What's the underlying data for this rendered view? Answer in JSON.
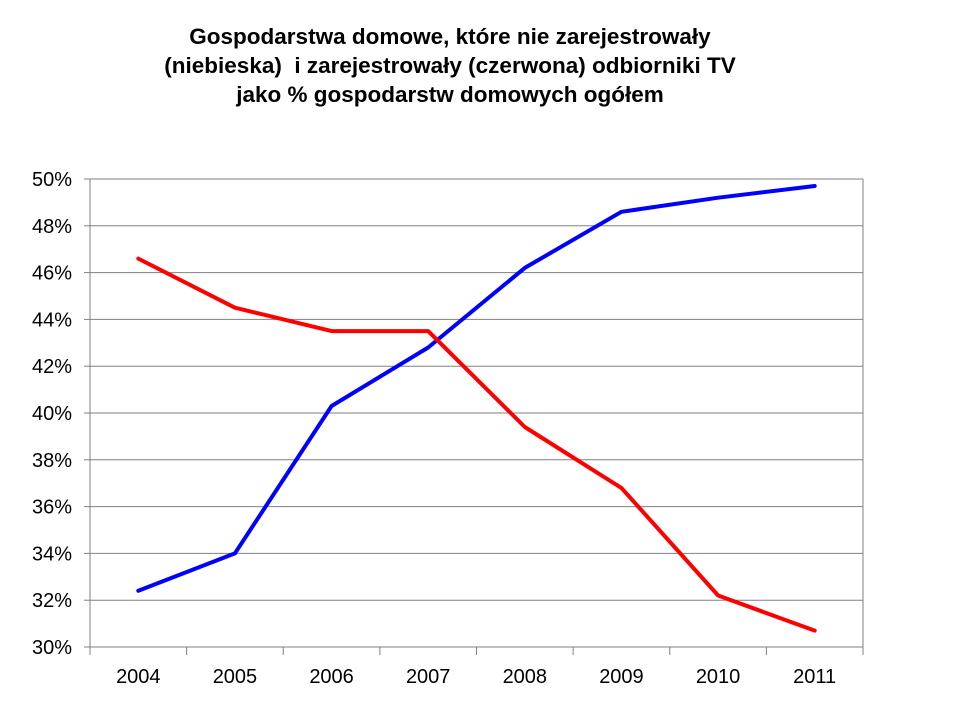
{
  "chart_data": {
    "type": "line",
    "title_lines": [
      "Gospodarstwa domowe, które nie zarejestrowały",
      "(niebieska)  i zarejestrowały (czerwona) odbiorniki TV",
      "jako % gospodarstw domowych ogółem"
    ],
    "xlabel": "",
    "ylabel": "",
    "categories": [
      "2004",
      "2005",
      "2006",
      "2007",
      "2008",
      "2009",
      "2010",
      "2011"
    ],
    "y_ticks": [
      "30%",
      "32%",
      "34%",
      "36%",
      "38%",
      "40%",
      "42%",
      "44%",
      "46%",
      "48%",
      "50%"
    ],
    "ylim": [
      30,
      50
    ],
    "y_unit": "%",
    "grid": true,
    "legend": "none",
    "series": [
      {
        "color": "#0000ff",
        "values": [
          32.4,
          34.0,
          40.3,
          42.8,
          46.2,
          48.6,
          49.2,
          49.7
        ]
      },
      {
        "color": "#ff0000",
        "values": [
          46.6,
          44.5,
          43.5,
          43.5,
          39.4,
          36.8,
          32.2,
          30.7
        ]
      }
    ]
  }
}
